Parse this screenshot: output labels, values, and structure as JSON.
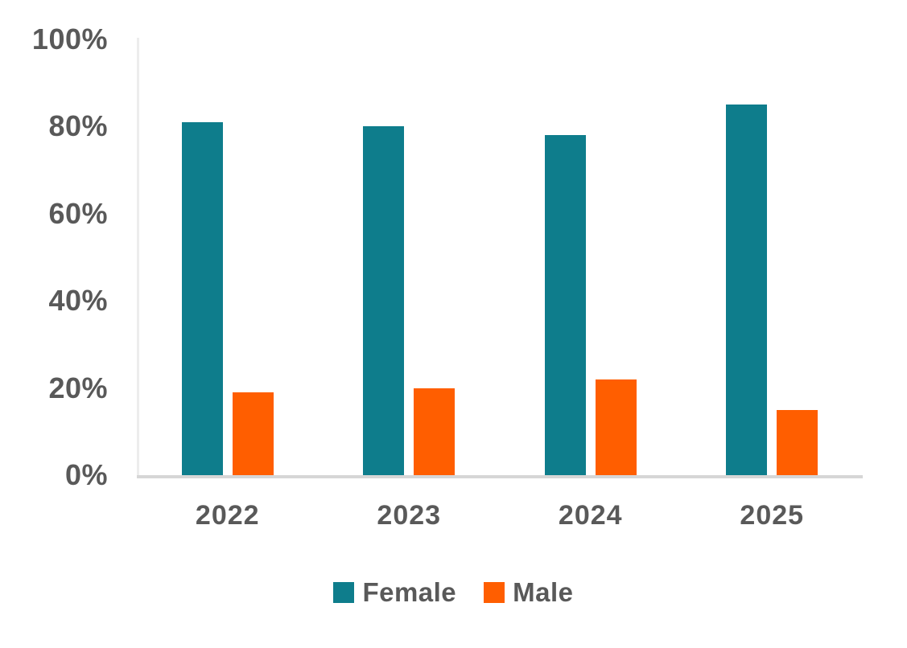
{
  "chart_data": {
    "type": "bar",
    "title": "",
    "categories": [
      "2022",
      "2023",
      "2024",
      "2025"
    ],
    "series": [
      {
        "name": "Female",
        "color": "#0e7d8c",
        "values": [
          81,
          80,
          78,
          85
        ]
      },
      {
        "name": "Male",
        "color": "#ff5e00",
        "values": [
          19,
          20,
          22,
          15
        ]
      }
    ],
    "y_ticks": [
      {
        "value": 0,
        "label": "0%"
      },
      {
        "value": 20,
        "label": "20%"
      },
      {
        "value": 40,
        "label": "40%"
      },
      {
        "value": 60,
        "label": "60%"
      },
      {
        "value": 80,
        "label": "80%"
      },
      {
        "value": 100,
        "label": "100%"
      }
    ],
    "ylim": [
      0,
      100
    ],
    "xlabel": "",
    "ylabel": "",
    "grid": false,
    "legend_position": "bottom",
    "colors": {
      "label_text": "#595959",
      "y_axis_line": "#ededed",
      "x_axis_line": "#d6d6d6",
      "background": "#ffffff"
    }
  }
}
